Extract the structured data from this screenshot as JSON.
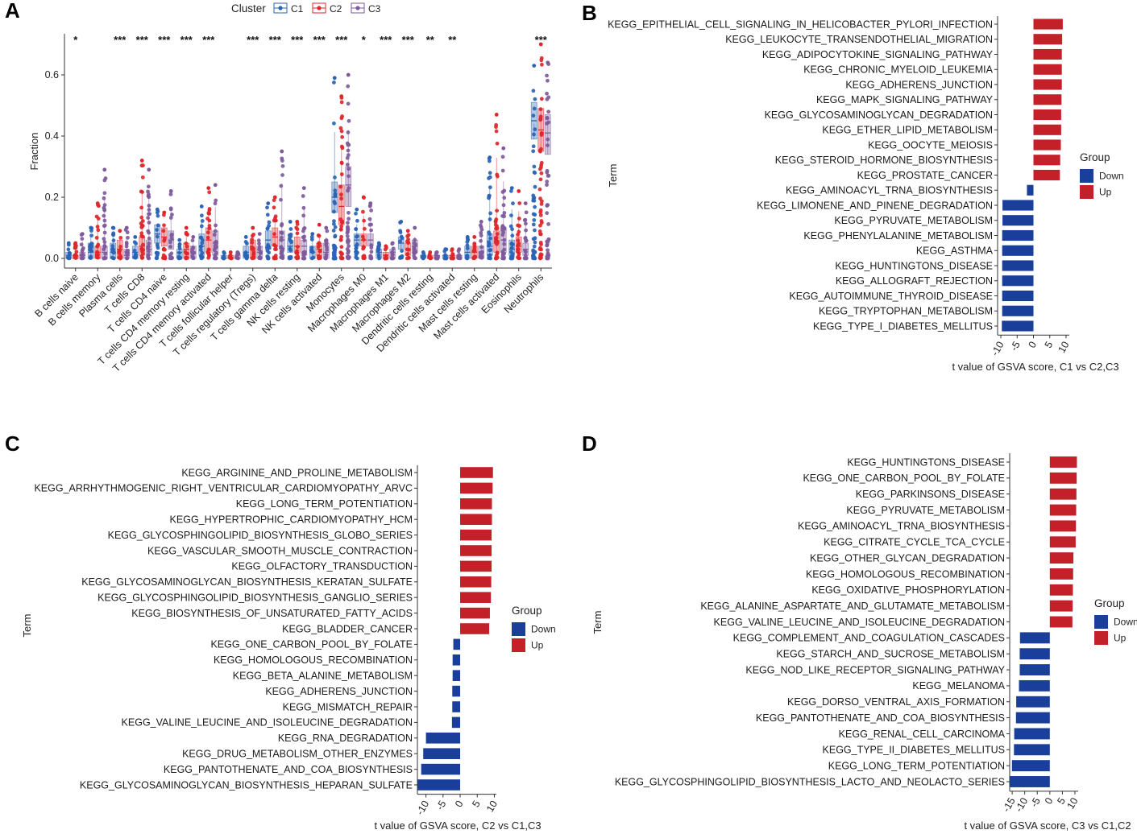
{
  "panels": {
    "A": {
      "letter": "A",
      "legend_title": "Cluster",
      "colors": {
        "C1": "#2B63B5",
        "C2": "#E0262B",
        "C3": "#7E5A9B"
      },
      "chart_data": {
        "type": "boxplot",
        "title": "",
        "xlabel": "",
        "ylabel": "Fraction",
        "ylim": [
          0,
          0.7
        ],
        "yticks": [
          "0.0",
          "0.2",
          "0.4",
          "0.6"
        ],
        "ytick_values": [
          0,
          0.2,
          0.4,
          0.6
        ],
        "legend": [
          "C1",
          "C2",
          "C3"
        ],
        "categories": [
          "B cells naive",
          "B cells memory",
          "Plasma cells",
          "T cells CD8",
          "T cells CD4 naive",
          "T cells CD4 memory resting",
          "T cells CD4 memory activated",
          "T cells follicular helper",
          "T cells regulatory (Tregs)",
          "T cells gamma delta",
          "NK cells resting",
          "NK cells activated",
          "Monocytes",
          "Macrophages M0",
          "Macrophages M1",
          "Macrophages M2",
          "Dendritic cells resting",
          "Dendritic cells activated",
          "Mast cells resting",
          "Mast cells activated",
          "Eosinophils",
          "Neutrophils"
        ],
        "significance": [
          "*",
          "",
          "***",
          "***",
          "***",
          "***",
          "***",
          "",
          "***",
          "***",
          "***",
          "***",
          "***",
          "*",
          "***",
          "***",
          "**",
          "**",
          "",
          "",
          "",
          "***"
        ],
        "series": [
          {
            "name": "C1",
            "medians": [
              0.01,
              0.02,
              0.02,
              0.02,
              0.08,
              0.02,
              0.04,
              0.0,
              0.02,
              0.06,
              0.04,
              0.02,
              0.2,
              0.06,
              0.02,
              0.05,
              0.01,
              0.01,
              0.02,
              0.04,
              0.03,
              0.45
            ],
            "q1": [
              0.0,
              0.0,
              0.0,
              0.0,
              0.05,
              0.0,
              0.01,
              0.0,
              0.0,
              0.03,
              0.02,
              0.0,
              0.15,
              0.04,
              0.0,
              0.03,
              0.0,
              0.0,
              0.0,
              0.01,
              0.01,
              0.39
            ],
            "q3": [
              0.02,
              0.05,
              0.05,
              0.04,
              0.11,
              0.03,
              0.08,
              0.01,
              0.04,
              0.09,
              0.06,
              0.04,
              0.25,
              0.08,
              0.03,
              0.07,
              0.01,
              0.01,
              0.04,
              0.08,
              0.06,
              0.51
            ],
            "max": [
              0.05,
              0.1,
              0.1,
              0.07,
              0.16,
              0.06,
              0.17,
              0.02,
              0.07,
              0.18,
              0.12,
              0.08,
              0.59,
              0.16,
              0.05,
              0.12,
              0.02,
              0.03,
              0.07,
              0.33,
              0.23,
              0.63
            ]
          },
          {
            "name": "C2",
            "medians": [
              0.0,
              0.02,
              0.03,
              0.04,
              0.07,
              0.03,
              0.06,
              0.0,
              0.03,
              0.07,
              0.04,
              0.03,
              0.17,
              0.06,
              0.01,
              0.03,
              0.0,
              0.01,
              0.02,
              0.05,
              0.04,
              0.42
            ],
            "q1": [
              0.0,
              0.0,
              0.0,
              0.01,
              0.04,
              0.0,
              0.02,
              0.0,
              0.0,
              0.04,
              0.02,
              0.01,
              0.11,
              0.04,
              0.0,
              0.01,
              0.0,
              0.0,
              0.0,
              0.02,
              0.02,
              0.35
            ],
            "q3": [
              0.01,
              0.04,
              0.06,
              0.07,
              0.1,
              0.05,
              0.1,
              0.01,
              0.06,
              0.1,
              0.07,
              0.05,
              0.24,
              0.08,
              0.02,
              0.05,
              0.01,
              0.01,
              0.04,
              0.09,
              0.07,
              0.49
            ],
            "max": [
              0.05,
              0.18,
              0.09,
              0.32,
              0.15,
              0.1,
              0.23,
              0.02,
              0.1,
              0.2,
              0.12,
              0.11,
              0.53,
              0.2,
              0.04,
              0.09,
              0.02,
              0.03,
              0.07,
              0.47,
              0.22,
              0.7
            ]
          },
          {
            "name": "C3",
            "medians": [
              0.01,
              0.02,
              0.01,
              0.03,
              0.06,
              0.02,
              0.05,
              0.0,
              0.02,
              0.06,
              0.04,
              0.02,
              0.24,
              0.06,
              0.02,
              0.04,
              0.01,
              0.01,
              0.02,
              0.06,
              0.03,
              0.41
            ],
            "q1": [
              0.0,
              0.0,
              0.0,
              0.01,
              0.03,
              0.0,
              0.01,
              0.0,
              0.0,
              0.03,
              0.01,
              0.0,
              0.17,
              0.04,
              0.0,
              0.02,
              0.0,
              0.0,
              0.0,
              0.02,
              0.01,
              0.34
            ],
            "q3": [
              0.02,
              0.04,
              0.03,
              0.06,
              0.09,
              0.04,
              0.09,
              0.01,
              0.04,
              0.09,
              0.06,
              0.05,
              0.3,
              0.08,
              0.03,
              0.06,
              0.01,
              0.01,
              0.04,
              0.1,
              0.05,
              0.47
            ],
            "max": [
              0.08,
              0.29,
              0.1,
              0.29,
              0.22,
              0.07,
              0.24,
              0.02,
              0.08,
              0.35,
              0.23,
              0.1,
              0.6,
              0.18,
              0.05,
              0.1,
              0.02,
              0.03,
              0.12,
              0.36,
              0.18,
              0.64
            ]
          }
        ]
      }
    },
    "B": {
      "letter": "B",
      "colors": {
        "Down": "#1A3F9A",
        "Up": "#C3202A"
      },
      "chart_data": {
        "type": "bar",
        "orientation": "horizontal",
        "xlabel": "t value of GSVA score, C1 vs C2,C3",
        "ylabel": "Term",
        "xlim": [
          -11,
          11
        ],
        "xticks": [
          -10,
          -5,
          0,
          5,
          10
        ],
        "legend_title": "Group",
        "legend": [
          "Down",
          "Up"
        ],
        "categories": [
          "KEGG_EPITHELIAL_CELL_SIGNALING_IN_HELICOBACTER_PYLORI_INFECTION",
          "KEGG_LEUKOCYTE_TRANSENDOTHELIAL_MIGRATION",
          "KEGG_ADIPOCYTOKINE_SIGNALING_PATHWAY",
          "KEGG_CHRONIC_MYELOID_LEUKEMIA",
          "KEGG_ADHERENS_JUNCTION",
          "KEGG_MAPK_SIGNALING_PATHWAY",
          "KEGG_GLYCOSAMINOGLYCAN_DEGRADATION",
          "KEGG_ETHER_LIPID_METABOLISM",
          "KEGG_OOCYTE_MEIOSIS",
          "KEGG_STEROID_HORMONE_BIOSYNTHESIS",
          "KEGG_PROSTATE_CANCER",
          "KEGG_AMINOACYL_TRNA_BIOSYNTHESIS",
          "KEGG_LIMONENE_AND_PINENE_DEGRADATION",
          "KEGG_PYRUVATE_METABOLISM",
          "KEGG_PHENYLALANINE_METABOLISM",
          "KEGG_ASTHMA",
          "KEGG_HUNTINGTONS_DISEASE",
          "KEGG_ALLOGRAFT_REJECTION",
          "KEGG_AUTOIMMUNE_THYROID_DISEASE",
          "KEGG_TRYPTOPHAN_METABOLISM",
          "KEGG_TYPE_I_DIABETES_MELLITUS"
        ],
        "values": [
          9.0,
          8.8,
          8.7,
          8.7,
          8.7,
          8.6,
          8.5,
          8.5,
          8.4,
          8.2,
          8.1,
          -2.0,
          -9.5,
          -9.5,
          -9.6,
          -9.6,
          -9.6,
          -9.6,
          -9.6,
          -9.6,
          -9.7
        ],
        "groups": [
          "Up",
          "Up",
          "Up",
          "Up",
          "Up",
          "Up",
          "Up",
          "Up",
          "Up",
          "Up",
          "Up",
          "Down",
          "Down",
          "Down",
          "Down",
          "Down",
          "Down",
          "Down",
          "Down",
          "Down",
          "Down"
        ]
      }
    },
    "C": {
      "letter": "C",
      "colors": {
        "Down": "#1A3F9A",
        "Up": "#C3202A"
      },
      "chart_data": {
        "type": "bar",
        "orientation": "horizontal",
        "xlabel": "t value of GSVA score, C2 vs C1,C3",
        "ylabel": "Term",
        "xlim": [
          -12.5,
          10.6
        ],
        "xticks": [
          -10,
          -5,
          0,
          5,
          10
        ],
        "legend_title": "Group",
        "legend": [
          "Down",
          "Up"
        ],
        "categories": [
          "KEGG_ARGININE_AND_PROLINE_METABOLISM",
          "KEGG_ARRHYTHMOGENIC_RIGHT_VENTRICULAR_CARDIOMYOPATHY_ARVC",
          "KEGG_LONG_TERM_POTENTIATION",
          "KEGG_HYPERTROPHIC_CARDIOMYOPATHY_HCM",
          "KEGG_GLYCOSPHINGOLIPID_BIOSYNTHESIS_GLOBO_SERIES",
          "KEGG_VASCULAR_SMOOTH_MUSCLE_CONTRACTION",
          "KEGG_OLFACTORY_TRANSDUCTION",
          "KEGG_GLYCOSAMINOGLYCAN_BIOSYNTHESIS_KERATAN_SULFATE",
          "KEGG_GLYCOSPHINGOLIPID_BIOSYNTHESIS_GANGLIO_SERIES",
          "KEGG_BIOSYNTHESIS_OF_UNSATURATED_FATTY_ACIDS",
          "KEGG_BLADDER_CANCER",
          "KEGG_ONE_CARBON_POOL_BY_FOLATE",
          "KEGG_HOMOLOGOUS_RECOMBINATION",
          "KEGG_BETA_ALANINE_METABOLISM",
          "KEGG_ADHERENS_JUNCTION",
          "KEGG_MISMATCH_REPAIR",
          "KEGG_VALINE_LEUCINE_AND_ISOLEUCINE_DEGRADATION",
          "KEGG_RNA_DEGRADATION",
          "KEGG_DRUG_METABOLISM_OTHER_ENZYMES",
          "KEGG_PANTOTHENATE_AND_COA_BIOSYNTHESIS",
          "KEGG_GLYCOSAMINOGLYCAN_BIOSYNTHESIS_HEPARAN_SULFATE"
        ],
        "values": [
          9.6,
          9.5,
          9.3,
          9.3,
          9.2,
          9.2,
          9.2,
          9.1,
          9.0,
          8.7,
          8.5,
          -2.0,
          -2.2,
          -2.2,
          -2.3,
          -2.3,
          -2.4,
          -10.0,
          -10.8,
          -11.4,
          -12.4
        ],
        "groups": [
          "Up",
          "Up",
          "Up",
          "Up",
          "Up",
          "Up",
          "Up",
          "Up",
          "Up",
          "Up",
          "Up",
          "Down",
          "Down",
          "Down",
          "Down",
          "Down",
          "Down",
          "Down",
          "Down",
          "Down",
          "Down"
        ]
      }
    },
    "D": {
      "letter": "D",
      "colors": {
        "Down": "#1A3F9A",
        "Up": "#C3202A"
      },
      "chart_data": {
        "type": "bar",
        "orientation": "horizontal",
        "xlabel": "t value of GSVA score, C3 vs C1,C2",
        "ylabel": "Term",
        "xlim": [
          -16,
          11.3
        ],
        "xticks": [
          -15,
          -10,
          -5,
          0,
          5,
          10
        ],
        "legend_title": "Group",
        "legend": [
          "Down",
          "Up"
        ],
        "categories": [
          "KEGG_HUNTINGTONS_DISEASE",
          "KEGG_ONE_CARBON_POOL_BY_FOLATE",
          "KEGG_PARKINSONS_DISEASE",
          "KEGG_PYRUVATE_METABOLISM",
          "KEGG_AMINOACYL_TRNA_BIOSYNTHESIS",
          "KEGG_CITRATE_CYCLE_TCA_CYCLE",
          "KEGG_OTHER_GLYCAN_DEGRADATION",
          "KEGG_HOMOLOGOUS_RECOMBINATION",
          "KEGG_OXIDATIVE_PHOSPHORYLATION",
          "KEGG_ALANINE_ASPARTATE_AND_GLUTAMATE_METABOLISM",
          "KEGG_VALINE_LEUCINE_AND_ISOLEUCINE_DEGRADATION",
          "KEGG_COMPLEMENT_AND_COAGULATION_CASCADES",
          "KEGG_STARCH_AND_SUCROSE_METABOLISM",
          "KEGG_NOD_LIKE_RECEPTOR_SIGNALING_PATHWAY",
          "KEGG_MELANOMA",
          "KEGG_DORSO_VENTRAL_AXIS_FORMATION",
          "KEGG_PANTOTHENATE_AND_COA_BIOSYNTHESIS",
          "KEGG_RENAL_CELL_CARCINOMA",
          "KEGG_TYPE_II_DIABETES_MELLITUS",
          "KEGG_LONG_TERM_POTENTIATION",
          "KEGG_GLYCOSPHINGOLIPID_BIOSYNTHESIS_LACTO_AND_NEOLACTO_SERIES"
        ],
        "values": [
          10.8,
          10.7,
          10.6,
          10.5,
          10.4,
          10.3,
          9.4,
          9.3,
          9.2,
          9.1,
          9.0,
          -11.9,
          -12.0,
          -12.0,
          -12.3,
          -13.4,
          -13.5,
          -14.2,
          -14.3,
          -15.1,
          -16.0
        ],
        "groups": [
          "Up",
          "Up",
          "Up",
          "Up",
          "Up",
          "Up",
          "Up",
          "Up",
          "Up",
          "Up",
          "Up",
          "Down",
          "Down",
          "Down",
          "Down",
          "Down",
          "Down",
          "Down",
          "Down",
          "Down",
          "Down"
        ]
      }
    }
  }
}
